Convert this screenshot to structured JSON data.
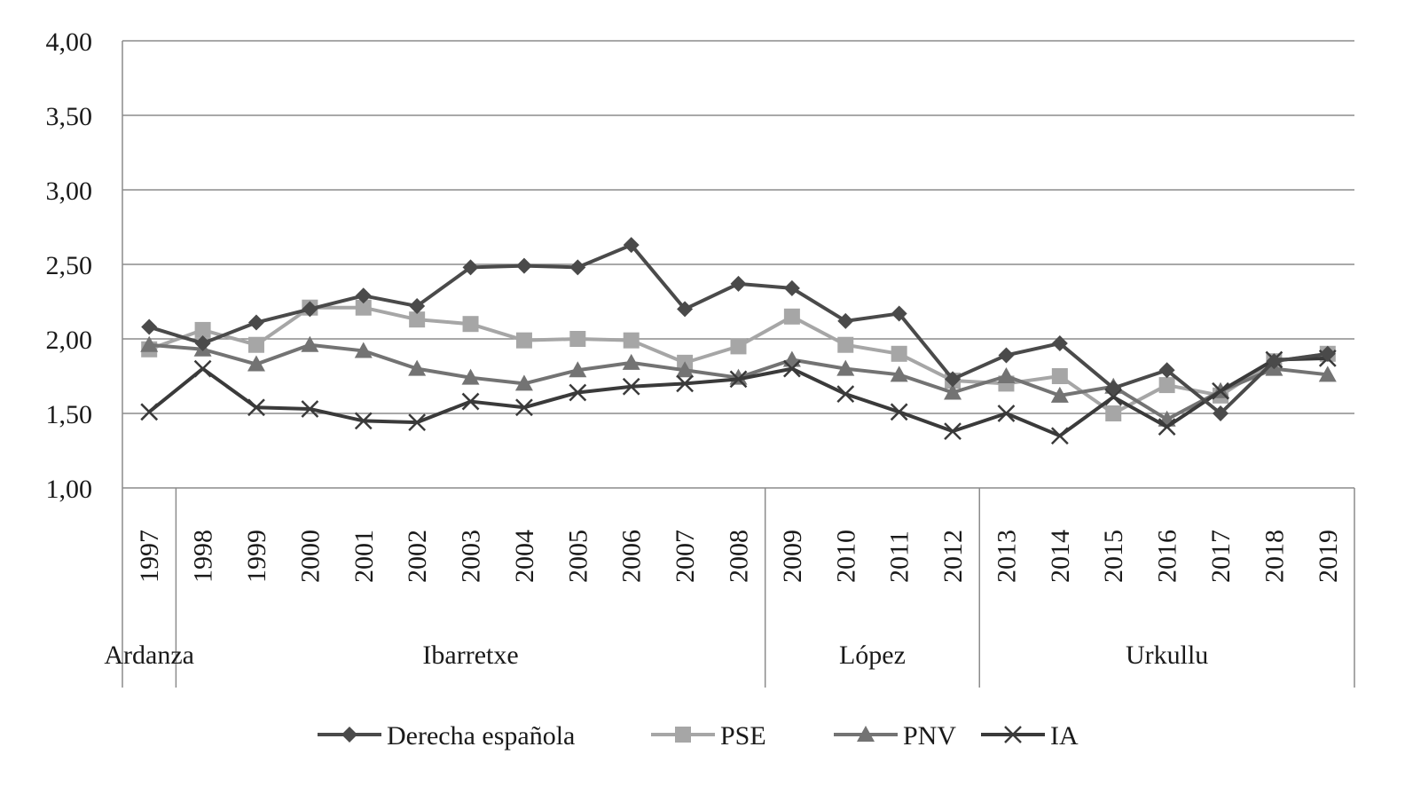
{
  "chart_data": {
    "type": "line",
    "title": "",
    "xlabel": "",
    "ylabel": "",
    "ylim": [
      1.0,
      4.0
    ],
    "y_ticks": [
      "1,00",
      "1,50",
      "2,00",
      "2,50",
      "3,00",
      "3,50",
      "4,00"
    ],
    "y_tick_values": [
      1.0,
      1.5,
      2.0,
      2.5,
      3.0,
      3.5,
      4.0
    ],
    "grid": true,
    "legend_position": "bottom",
    "categories": [
      "1997",
      "1998",
      "1999",
      "2000",
      "2001",
      "2002",
      "2003",
      "2004",
      "2005",
      "2006",
      "2007",
      "2008",
      "2009",
      "2010",
      "2011",
      "2012",
      "2013",
      "2014",
      "2015",
      "2016",
      "2017",
      "2018",
      "2019"
    ],
    "periods": [
      {
        "name": "Ardanza",
        "start": 0,
        "end": 0
      },
      {
        "name": "Ibarretxe",
        "start": 1,
        "end": 11
      },
      {
        "name": "López",
        "start": 12,
        "end": 15
      },
      {
        "name": "Urkullu",
        "start": 16,
        "end": 22
      }
    ],
    "series": [
      {
        "name": "PSE",
        "color": "#a6a6a6",
        "marker": "square",
        "values": [
          1.93,
          2.06,
          1.96,
          2.21,
          2.21,
          2.13,
          2.1,
          1.99,
          2.0,
          1.99,
          1.84,
          1.95,
          2.15,
          1.96,
          1.9,
          1.72,
          1.7,
          1.75,
          1.5,
          1.69,
          1.62,
          1.85,
          1.9
        ]
      },
      {
        "name": "PNV",
        "color": "#737373",
        "marker": "triangle",
        "values": [
          1.96,
          1.93,
          1.83,
          1.96,
          1.92,
          1.8,
          1.74,
          1.7,
          1.79,
          1.84,
          1.79,
          1.74,
          1.86,
          1.8,
          1.76,
          1.64,
          1.75,
          1.62,
          1.68,
          1.46,
          1.65,
          1.8,
          1.76
        ]
      },
      {
        "name": "IA",
        "color": "#3a3a3a",
        "marker": "x",
        "values": [
          1.51,
          1.8,
          1.54,
          1.53,
          1.45,
          1.44,
          1.58,
          1.54,
          1.64,
          1.68,
          1.7,
          1.73,
          1.8,
          1.63,
          1.51,
          1.38,
          1.5,
          1.35,
          1.61,
          1.41,
          1.65,
          1.86,
          1.87
        ]
      },
      {
        "name": "Derecha española",
        "color": "#4a4a4a",
        "marker": "diamond",
        "values": [
          2.08,
          1.97,
          2.11,
          2.2,
          2.29,
          2.22,
          2.48,
          2.49,
          2.48,
          2.63,
          2.2,
          2.37,
          2.34,
          2.12,
          2.17,
          1.73,
          1.89,
          1.97,
          1.67,
          1.79,
          1.5,
          1.85,
          1.9
        ]
      }
    ],
    "legend_order": [
      "Derecha española",
      "PSE",
      "PNV",
      "IA"
    ]
  }
}
